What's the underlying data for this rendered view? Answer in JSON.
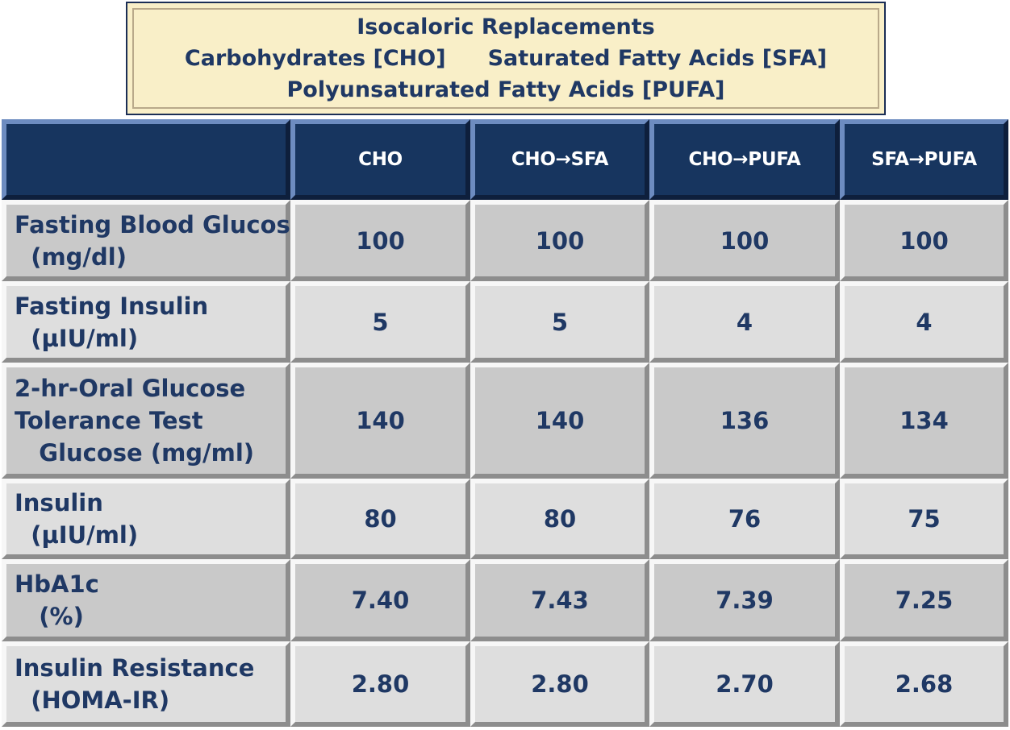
{
  "title": {
    "line1": "Isocaloric Replacements",
    "line2a": "Carbohydrates [CHO]",
    "line2b": "Saturated Fatty Acids [SFA]",
    "line3": "Polyunsaturated Fatty Acids [PUFA]"
  },
  "chart_data": {
    "type": "table",
    "columns": [
      "",
      "CHO",
      "CHO→SFA",
      "CHO→PUFA",
      "SFA→PUFA"
    ],
    "rows": [
      {
        "label": [
          "Fasting Blood Glucose",
          "  (mg/dl)"
        ],
        "values": [
          "100",
          "100",
          "100",
          "100"
        ]
      },
      {
        "label": [
          "Fasting Insulin",
          "  (µIU/ml)"
        ],
        "values": [
          "5",
          "5",
          "4",
          "4"
        ]
      },
      {
        "label": [
          "2-hr-Oral Glucose",
          "Tolerance Test",
          "   Glucose (mg/ml)"
        ],
        "values": [
          "140",
          "140",
          "136",
          "134"
        ]
      },
      {
        "label": [
          "Insulin",
          "  (µIU/ml)"
        ],
        "values": [
          "80",
          "80",
          "76",
          "75"
        ]
      },
      {
        "label": [
          "HbA1c",
          "   (%)"
        ],
        "values": [
          "7.40",
          "7.43",
          "7.39",
          "7.25"
        ]
      },
      {
        "label": [
          "Insulin Resistance",
          "  (HOMA-IR)"
        ],
        "values": [
          "2.80",
          "2.80",
          "2.70",
          "2.68"
        ]
      }
    ]
  },
  "colors": {
    "header_bg": "#17355f",
    "cell_dark": "#c9c9c9",
    "cell_light": "#dedede",
    "text": "#1f3864",
    "title_bg": "#f9efc8"
  }
}
